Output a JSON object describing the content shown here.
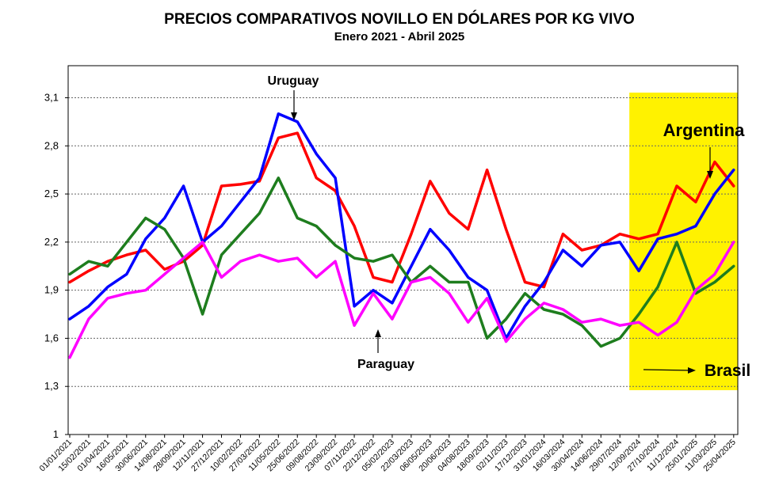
{
  "chart_data": {
    "type": "line",
    "title": "PRECIOS COMPARATIVOS NOVILLO EN DÓLARES POR KG  VIVO",
    "subtitle": "Enero  2021 -  Abril 2025",
    "xlabel": "",
    "ylabel": "",
    "ylim": [
      1,
      3.3
    ],
    "grid": true,
    "y_ticks": [
      1,
      1.3,
      1.6,
      1.9,
      2.2,
      2.5,
      2.8,
      3.1
    ],
    "y_tick_labels": [
      "1",
      "1,3",
      "1,6",
      "1,9",
      "2,2",
      "2,5",
      "2,8",
      "3,1"
    ],
    "x_tick_labels": [
      "01/01/2021",
      "15/02/2021",
      "01/04/2021",
      "16/05/2021",
      "30/06/2021",
      "14/08/2021",
      "28/09/2021",
      "12/11/2021",
      "27/12/2021",
      "10/02/2022",
      "27/03/2022",
      "11/05/2022",
      "25/06/2022",
      "09/08/2022",
      "23/09/2022",
      "07/11/2022",
      "22/12/2022",
      "05/02/2023",
      "22/03/2023",
      "06/05/2023",
      "20/06/2023",
      "04/08/2023",
      "18/09/2023",
      "02/11/2023",
      "17/12/2023",
      "31/01/2024",
      "16/03/2024",
      "30/04/2024",
      "14/06/2024",
      "29/07/2024",
      "12/09/2024",
      "27/10/2024",
      "11/12/2024",
      "25/01/2025",
      "11/03/2025",
      "25/04/2025"
    ],
    "x": [
      0,
      1,
      2,
      3,
      4,
      5,
      6,
      7,
      8,
      9,
      10,
      11,
      12,
      13,
      14,
      15,
      16,
      17,
      18,
      19,
      20,
      21,
      22,
      23,
      24,
      25,
      26,
      27,
      28,
      29,
      30,
      31,
      32,
      33,
      34,
      35
    ],
    "highlight": {
      "from_index": 29.5,
      "to_index": 35.2,
      "color": "#FFF200"
    },
    "series": [
      {
        "name": "Argentina",
        "color": "#FF0000",
        "values": [
          1.95,
          2.02,
          2.08,
          2.12,
          2.15,
          2.03,
          2.08,
          2.18,
          2.55,
          2.56,
          2.58,
          2.85,
          2.88,
          2.6,
          2.52,
          2.3,
          1.98,
          1.95,
          2.25,
          2.58,
          2.38,
          2.28,
          2.65,
          2.28,
          1.95,
          1.92,
          2.25,
          2.15,
          2.18,
          2.25,
          2.22,
          2.25,
          2.55,
          2.45,
          2.7,
          2.55
        ]
      },
      {
        "name": "Uruguay",
        "color": "#0000FF",
        "values": [
          1.72,
          1.8,
          1.92,
          2.0,
          2.22,
          2.35,
          2.55,
          2.2,
          2.3,
          2.45,
          2.6,
          3.0,
          2.95,
          2.75,
          2.6,
          1.8,
          1.9,
          1.82,
          2.05,
          2.28,
          2.15,
          1.98,
          1.9,
          1.6,
          1.8,
          1.95,
          2.15,
          2.05,
          2.18,
          2.2,
          2.02,
          2.22,
          2.25,
          2.3,
          2.5,
          2.65
        ]
      },
      {
        "name": "Paraguay",
        "color": "#1E7D1E",
        "values": [
          2.0,
          2.08,
          2.05,
          2.2,
          2.35,
          2.28,
          2.1,
          1.75,
          2.12,
          2.25,
          2.38,
          2.6,
          2.35,
          2.3,
          2.18,
          2.1,
          2.08,
          2.12,
          1.95,
          2.05,
          1.95,
          1.95,
          1.6,
          1.72,
          1.88,
          1.78,
          1.75,
          1.68,
          1.55,
          1.6,
          1.75,
          1.92,
          2.2,
          1.88,
          1.95,
          2.05
        ]
      },
      {
        "name": "Brasil",
        "color": "#FF00FF",
        "values": [
          1.48,
          1.72,
          1.85,
          1.88,
          1.9,
          2.0,
          2.1,
          2.2,
          1.98,
          2.08,
          2.12,
          2.08,
          2.1,
          1.98,
          2.08,
          1.68,
          1.88,
          1.72,
          1.95,
          1.98,
          1.88,
          1.7,
          1.85,
          1.58,
          1.72,
          1.82,
          1.78,
          1.7,
          1.72,
          1.68,
          1.7,
          1.62,
          1.7,
          1.9,
          2.0,
          2.2
        ]
      }
    ],
    "annotations": [
      {
        "text": "Uruguay",
        "series": "Uruguay"
      },
      {
        "text": "Paraguay",
        "series": "Paraguay"
      },
      {
        "text": "Argentina",
        "series": "Argentina"
      },
      {
        "text": "Brasil",
        "series": "Brasil"
      }
    ]
  }
}
